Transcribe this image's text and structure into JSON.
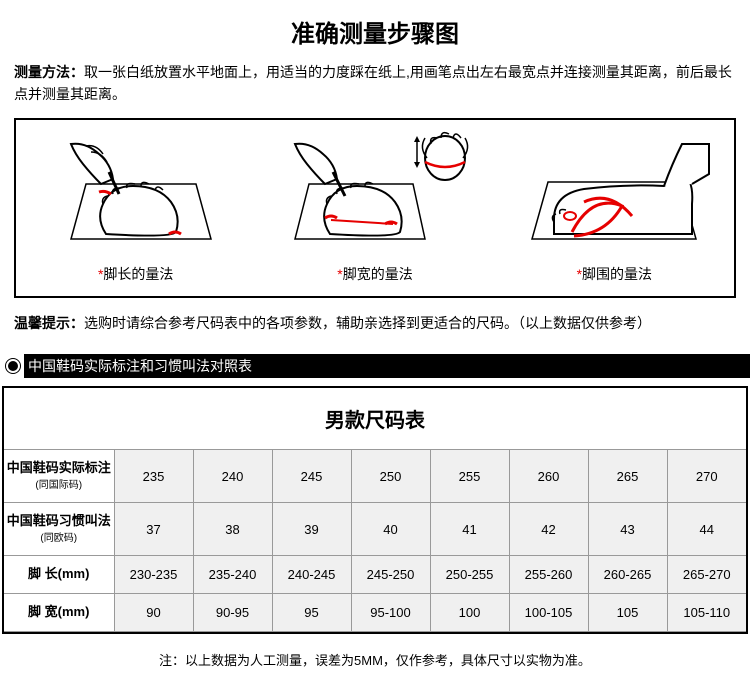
{
  "title": "准确测量步骤图",
  "method_label": "测量方法：",
  "method_text": "取一张白纸放置水平地面上，用适当的力度踩在纸上,用画笔点出左右最宽点并连接测量其距离，前后最长点并测量其距离。",
  "panels": [
    {
      "label": "脚长的量法"
    },
    {
      "label": "脚宽的量法"
    },
    {
      "label": "脚围的量法"
    }
  ],
  "tip_label": "温馨提示：",
  "tip_text": "选购时请综合参考尺码表中的各项参数，辅助亲选择到更适合的尺码。（以上数据仅供参考）",
  "blackbar_text": "中国鞋码实际标注和习惯叫法对照表",
  "table_title": "男款尺码表",
  "row_headers": [
    {
      "main": "中国鞋码实际标注",
      "sub": "(同国际码)"
    },
    {
      "main": "中国鞋码习惯叫法",
      "sub": "(同欧码)"
    },
    {
      "main": "脚 长(mm)",
      "sub": ""
    },
    {
      "main": "脚 宽(mm)",
      "sub": ""
    }
  ],
  "rows": [
    [
      "235",
      "240",
      "245",
      "250",
      "255",
      "260",
      "265",
      "270"
    ],
    [
      "37",
      "38",
      "39",
      "40",
      "41",
      "42",
      "43",
      "44"
    ],
    [
      "230-235",
      "235-240",
      "240-245",
      "245-250",
      "250-255",
      "255-260",
      "260-265",
      "265-270"
    ],
    [
      "90",
      "90-95",
      "95",
      "95-100",
      "100",
      "100-105",
      "105",
      "105-110"
    ]
  ],
  "footnote": "注：以上数据为人工测量，误差为5MM，仅作参考，具体尺寸以实物为准。",
  "colors": {
    "accent_red": "#e60000",
    "border": "#000000",
    "cell_bg": "#f0f0f0",
    "cell_border": "#999999"
  }
}
